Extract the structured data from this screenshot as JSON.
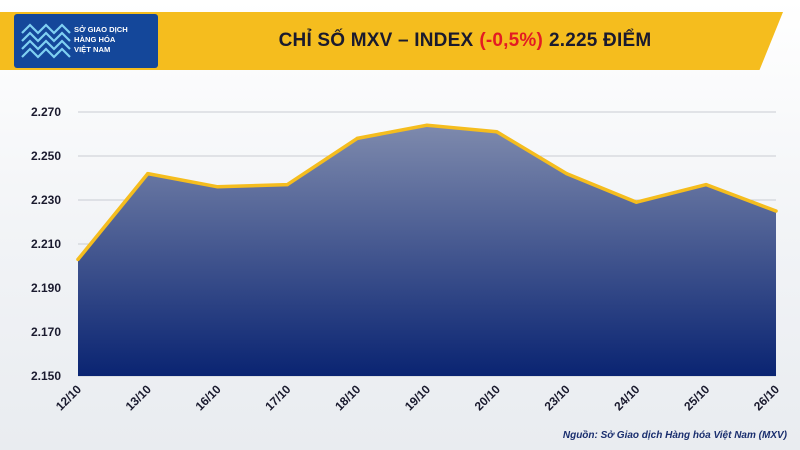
{
  "logo": {
    "lines": [
      "SỞ GIAO DỊCH",
      "HÀNG HÓA",
      "VIỆT NAM"
    ]
  },
  "header": {
    "title_prefix": "CHỈ SỐ MXV – INDEX",
    "title_change": "(-0,5%)",
    "title_suffix": "2.225 ĐIỂM"
  },
  "source": "Nguồn: Sở Giao dịch Hàng hóa Việt Nam (MXV)",
  "colors": {
    "header": "#f5bd1e",
    "logo": "#14479a",
    "line": "#f5bd1e",
    "area_top": "#7e8aad",
    "area_bottom": "#0a2472",
    "change": "#e31b23"
  },
  "chart_data": {
    "type": "area",
    "categories": [
      "12/10",
      "13/10",
      "16/10",
      "17/10",
      "18/10",
      "19/10",
      "20/10",
      "23/10",
      "24/10",
      "25/10",
      "26/10"
    ],
    "series": [
      {
        "values": [
          2203,
          2242,
          2236,
          2237,
          2258,
          2264,
          2261,
          2242,
          2229,
          2237,
          2225
        ]
      }
    ],
    "ylim": [
      2150,
      2280
    ],
    "yticks": [
      2150,
      2170,
      2190,
      2210,
      2230,
      2250,
      2270
    ],
    "ytick_labels": [
      "2.150",
      "2.170",
      "2.190",
      "2.210",
      "2.230",
      "2.250",
      "2.270"
    ],
    "grid": true,
    "title": "",
    "xlabel": "",
    "ylabel": ""
  }
}
